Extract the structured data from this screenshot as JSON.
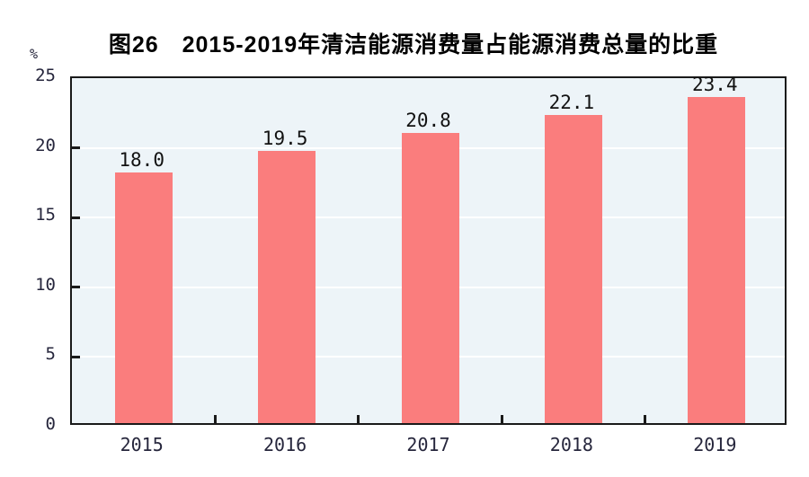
{
  "chart_data": {
    "type": "bar",
    "title": "图26　2015-2019年清洁能源消费量占能源消费总量的比重",
    "y_unit": "%",
    "categories": [
      "2015",
      "2016",
      "2017",
      "2018",
      "2019"
    ],
    "values": [
      18.0,
      19.5,
      20.8,
      22.1,
      23.4
    ],
    "value_labels": [
      "18.0",
      "19.5",
      "20.8",
      "22.1",
      "23.4"
    ],
    "ylim": [
      0,
      25
    ],
    "yticks": [
      0,
      5,
      10,
      15,
      20,
      25
    ],
    "grid": true,
    "legend": "none",
    "colors": {
      "bar": "#fa7d7d",
      "plot_background": "#edf4f8",
      "gridline": "#ffffff",
      "axis_border": "#1a1a1a",
      "axis_text": "#26263c",
      "title_text": "#000000",
      "data_label_text": "#121212"
    }
  }
}
